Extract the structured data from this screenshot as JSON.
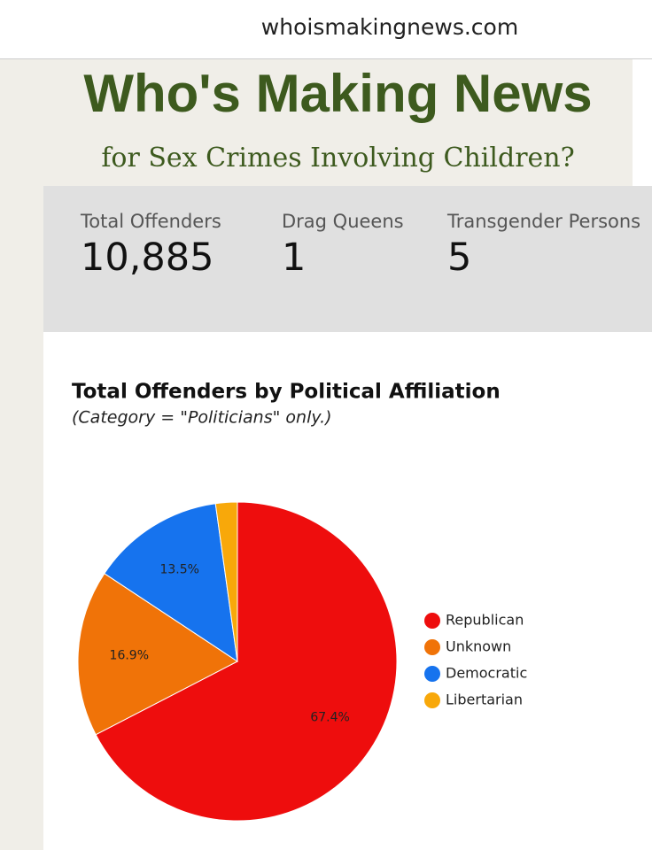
{
  "header": {
    "url": "whoismakingnews.com",
    "title": "Who's Making News",
    "subtitle": "for Sex Crimes Involving Children?"
  },
  "stats": [
    {
      "label": "Total Offenders",
      "value": "10,885"
    },
    {
      "label": "Drag Queens",
      "value": "1"
    },
    {
      "label": "Transgender Persons",
      "value": "5"
    }
  ],
  "chart_data": {
    "type": "pie",
    "title": "Total Offenders by Political Affiliation",
    "subtitle": "(Category = \"Politicians\" only.)",
    "categories": [
      "Republican",
      "Unknown",
      "Democratic",
      "Libertarian"
    ],
    "values": [
      67.4,
      16.9,
      13.5,
      2.2
    ],
    "value_labels": [
      "67.4%",
      "16.9%",
      "13.5%",
      null
    ],
    "colors": [
      "#ee0d0d",
      "#f07308",
      "#1673ee",
      "#f8a80a"
    ],
    "legend": "right"
  }
}
